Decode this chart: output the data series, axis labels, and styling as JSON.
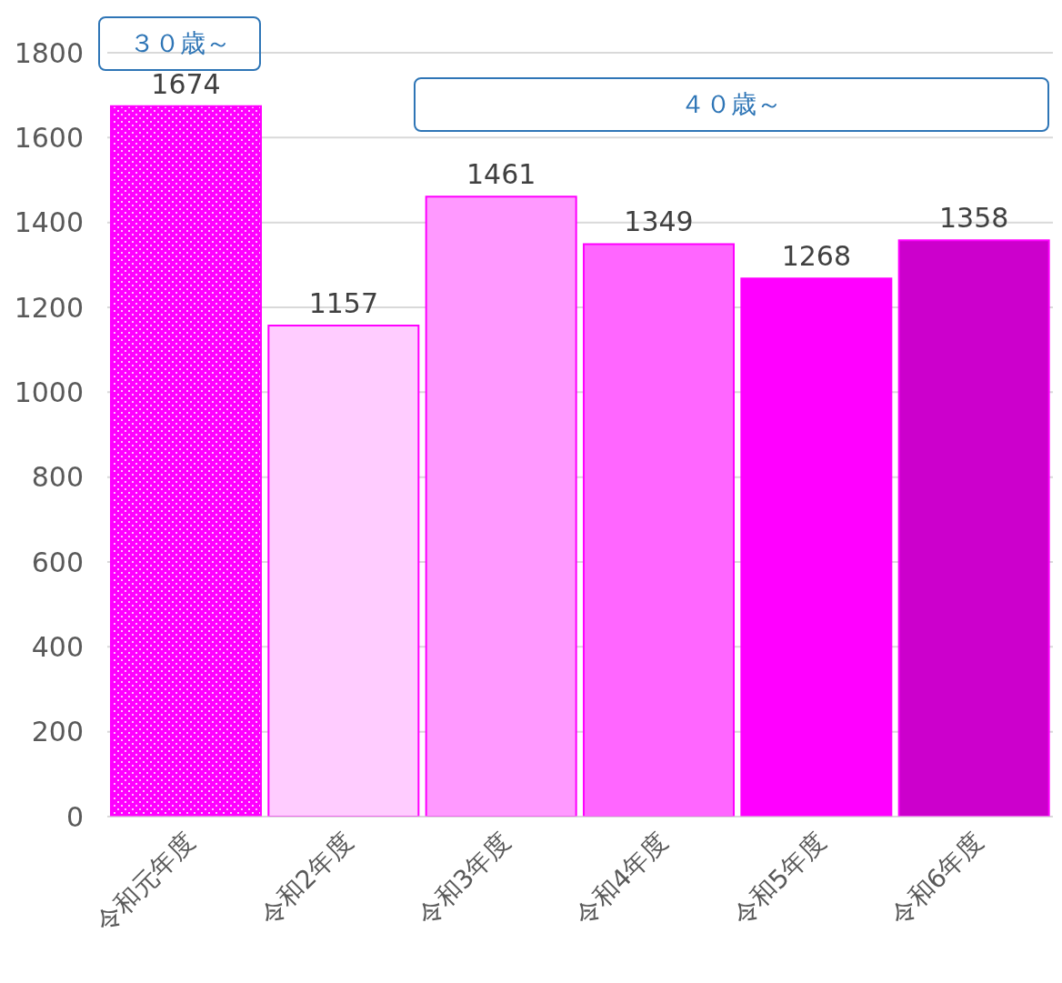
{
  "chart_data": {
    "type": "bar",
    "categories": [
      "令和元年度",
      "令和2年度",
      "令和3年度",
      "令和4年度",
      "令和5年度",
      "令和6年度"
    ],
    "values": [
      1674,
      1157,
      1461,
      1349,
      1268,
      1358
    ],
    "colors": [
      "#ff00ff",
      "#ffccff",
      "#ff99ff",
      "#ff66ff",
      "#ff00ff",
      "#cc00cc"
    ],
    "ylim": [
      0,
      1800
    ],
    "yticks": [
      0,
      200,
      400,
      600,
      800,
      1000,
      1200,
      1400,
      1600,
      1800
    ],
    "grid": "y",
    "data_labels": true,
    "annotations": [
      "３０歳～",
      "４０歳～"
    ]
  }
}
